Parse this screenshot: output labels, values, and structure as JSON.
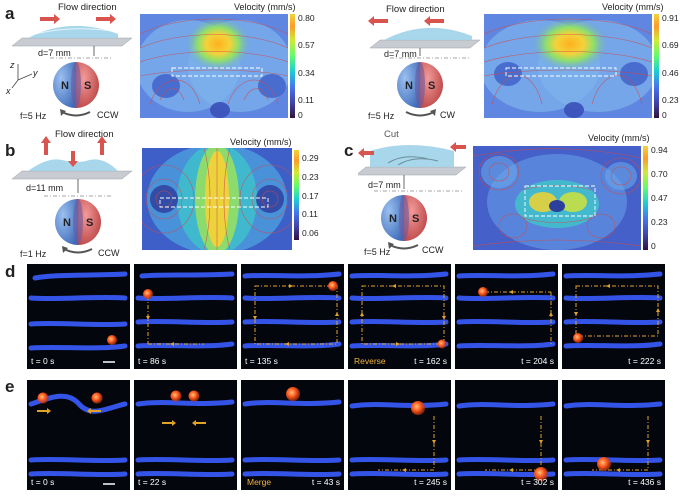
{
  "panels": {
    "a": {
      "label": "a",
      "left": {
        "flow_text": "Flow direction",
        "distance": "d=7 mm",
        "frequency": "f=5 Hz",
        "rotation": "CCW",
        "pole_n": "N",
        "pole_s": "S",
        "axis_z": "z",
        "axis_y": "y",
        "axis_x": "x",
        "velocity_title": "Velocity (mm/s)",
        "ticks": [
          "0.80",
          "0.57",
          "0.34",
          "0.11",
          "0"
        ]
      },
      "right": {
        "flow_text": "Flow direction",
        "distance": "d=7 mm",
        "frequency": "f=5 Hz",
        "rotation": "CW",
        "pole_n": "N",
        "pole_s": "S",
        "velocity_title": "Velocity (mm/s)",
        "ticks": [
          "0.91",
          "0.69",
          "0.46",
          "0.23",
          "0"
        ]
      }
    },
    "b": {
      "label": "b",
      "flow_text": "Flow direction",
      "distance": "d=11 mm",
      "frequency": "f=1 Hz",
      "rotation": "CCW",
      "pole_n": "N",
      "pole_s": "S",
      "velocity_title": "Velocity (mm/s)",
      "ticks": [
        "0.29",
        "0.23",
        "0.17",
        "0.11",
        "0.06"
      ]
    },
    "c": {
      "label": "c",
      "cut_text": "Cut",
      "distance": "d=7 mm",
      "frequency": "f=5 Hz",
      "rotation": "CCW",
      "pole_n": "N",
      "pole_s": "S",
      "velocity_title": "Velocity (mm/s)",
      "ticks": [
        "0.94",
        "0.70",
        "0.47",
        "0.23",
        "0"
      ]
    },
    "d": {
      "label": "d",
      "frames": [
        {
          "time": "t = 0 s",
          "note": ""
        },
        {
          "time": "t = 86 s",
          "note": ""
        },
        {
          "time": "t = 135 s",
          "note": ""
        },
        {
          "time": "t = 162 s",
          "note": "Reverse"
        },
        {
          "time": "t = 204 s",
          "note": ""
        },
        {
          "time": "t = 222 s",
          "note": ""
        }
      ]
    },
    "e": {
      "label": "e",
      "frames": [
        {
          "time": "t = 0 s",
          "note": ""
        },
        {
          "time": "t = 22 s",
          "note": ""
        },
        {
          "time": "t = 43 s",
          "note": "Merge"
        },
        {
          "time": "t = 245 s",
          "note": ""
        },
        {
          "time": "t = 302 s",
          "note": ""
        },
        {
          "time": "t = 436 s",
          "note": ""
        }
      ]
    }
  },
  "colors": {
    "pole_n": "#4f7fcf",
    "pole_s": "#d85a5a",
    "arrow_red": "#d9534f",
    "dash_orange": "#e0a32a",
    "particle": "#ff5a1f",
    "channel_blue": "#3a5cff",
    "frame_bg": "#04060d"
  }
}
